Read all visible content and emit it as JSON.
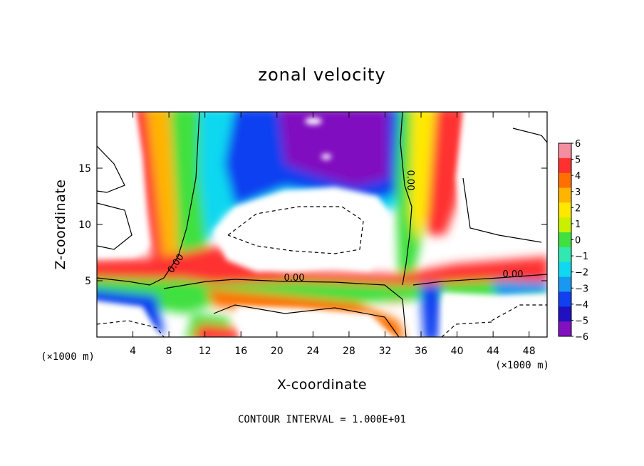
{
  "chart_data": {
    "type": "heatmap",
    "title": "zonal velocity",
    "xlabel": "X-coordinate",
    "ylabel": "Z-coordinate",
    "x_unit_label": "(×1000 m)",
    "x_unit_label_right": "(×1000 m)",
    "footer": "CONTOUR INTERVAL = 1.000E+01",
    "xlim": [
      0,
      50
    ],
    "ylim": [
      0,
      20
    ],
    "x_ticks": [
      4,
      8,
      12,
      16,
      20,
      24,
      28,
      32,
      36,
      40,
      44,
      48
    ],
    "y_ticks": [
      5,
      10,
      15
    ],
    "colorbar": {
      "ticks": [
        6,
        5,
        4,
        3,
        2,
        1,
        0,
        -1,
        -2,
        -3,
        -4,
        -5,
        -6
      ],
      "colors": [
        "#f58ea0",
        "#ff3030",
        "#ff7000",
        "#ffb400",
        "#ffe800",
        "#c8f000",
        "#40e040",
        "#30e8b0",
        "#10d8f0",
        "#1898f0",
        "#1040f0",
        "#2010c0",
        "#8010c0"
      ]
    },
    "contour_labels": [
      "0.00",
      "0.00",
      "0.00",
      "0.00"
    ],
    "features": [
      {
        "name": "warm column left",
        "x": [
          4,
          12
        ],
        "z": [
          0,
          20
        ],
        "value": 4
      },
      {
        "name": "low-level jet",
        "x": [
          0,
          50
        ],
        "z": [
          4,
          7
        ],
        "value": 5
      },
      {
        "name": "strong negative core",
        "x": [
          18,
          36
        ],
        "z": [
          12,
          20
        ],
        "value": -6
      },
      {
        "name": "weak interior",
        "x": [
          12,
          32
        ],
        "z": [
          7,
          12
        ],
        "value": 0
      },
      {
        "name": "warm column right",
        "x": [
          34,
          40
        ],
        "z": [
          0,
          20
        ],
        "value": 5
      }
    ]
  }
}
